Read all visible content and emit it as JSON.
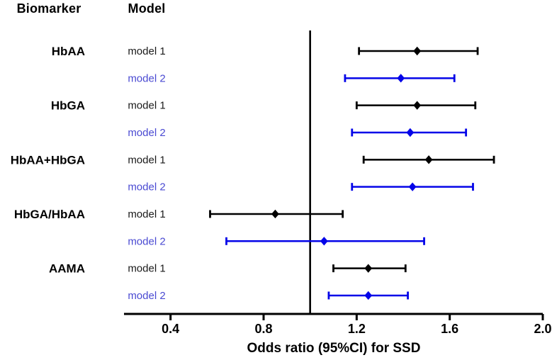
{
  "headers": {
    "biomarker": "Biomarker",
    "model": "Model"
  },
  "colors": {
    "model1_line": "#000000",
    "model1_text": "#1a1a1a",
    "model2_line": "#0404e8",
    "model2_text": "#4a4ad2",
    "axis": "#000000",
    "background": "#ffffff"
  },
  "chart_data": {
    "type": "forest",
    "title": "",
    "xlabel": "Odds ratio (95%CI) for SSD",
    "x_axis": {
      "min": 0.2,
      "max": 2.0,
      "tick_values": [
        0.4,
        0.8,
        1.2,
        1.6,
        2.0
      ],
      "tick_labels": [
        "0.4",
        "0.8",
        "1.2",
        "1.6",
        "2.0"
      ],
      "reference_line": 1.0,
      "grid": false
    },
    "legend": [
      "model 1",
      "model 2"
    ],
    "groups": [
      {
        "biomarker": "HbAA",
        "rows": [
          {
            "model": "model 1",
            "series": "model1",
            "or": 1.46,
            "ci_low": 1.21,
            "ci_high": 1.72
          },
          {
            "model": "model 2",
            "series": "model2",
            "or": 1.39,
            "ci_low": 1.15,
            "ci_high": 1.62
          }
        ]
      },
      {
        "biomarker": "HbGA",
        "rows": [
          {
            "model": "model 1",
            "series": "model1",
            "or": 1.46,
            "ci_low": 1.2,
            "ci_high": 1.71
          },
          {
            "model": "model 2",
            "series": "model2",
            "or": 1.43,
            "ci_low": 1.18,
            "ci_high": 1.67
          }
        ]
      },
      {
        "biomarker": "HbAA+HbGA",
        "rows": [
          {
            "model": "model 1",
            "series": "model1",
            "or": 1.51,
            "ci_low": 1.23,
            "ci_high": 1.79
          },
          {
            "model": "model 2",
            "series": "model2",
            "or": 1.44,
            "ci_low": 1.18,
            "ci_high": 1.7
          }
        ]
      },
      {
        "biomarker": "HbGA/HbAA",
        "rows": [
          {
            "model": "model 1",
            "series": "model1",
            "or": 0.85,
            "ci_low": 0.57,
            "ci_high": 1.14
          },
          {
            "model": "model 2",
            "series": "model2",
            "or": 1.06,
            "ci_low": 0.64,
            "ci_high": 1.49
          }
        ]
      },
      {
        "biomarker": "AAMA",
        "rows": [
          {
            "model": "model 1",
            "series": "model1",
            "or": 1.25,
            "ci_low": 1.1,
            "ci_high": 1.41
          },
          {
            "model": "model 2",
            "series": "model2",
            "or": 1.25,
            "ci_low": 1.08,
            "ci_high": 1.42
          }
        ]
      }
    ]
  }
}
